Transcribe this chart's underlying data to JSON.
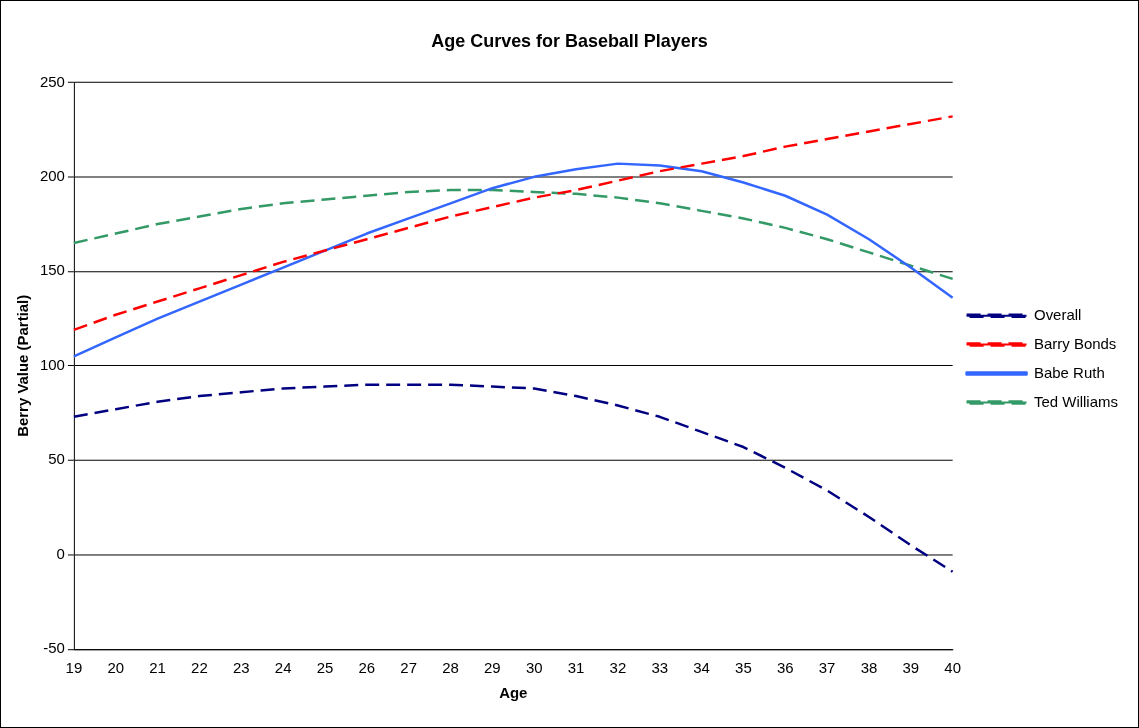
{
  "chart_data": {
    "type": "line",
    "title": "Age Curves for Baseball Players",
    "xlabel": "Age",
    "ylabel": "Berry Value (Partial)",
    "categories": [
      "19",
      "20",
      "21",
      "22",
      "23",
      "24",
      "25",
      "26",
      "27",
      "28",
      "29",
      "30",
      "31",
      "32",
      "33",
      "34",
      "35",
      "36",
      "37",
      "38",
      "39",
      "40"
    ],
    "series": [
      {
        "name": "Overall",
        "color": "#000080",
        "line_style": "dashed",
        "values": [
          73,
          77,
          81,
          84,
          86,
          88,
          89,
          90,
          90,
          90,
          89,
          88,
          84,
          79,
          73,
          65,
          57,
          46,
          34,
          20,
          5,
          -9
        ]
      },
      {
        "name": "Barry Bonds",
        "color": "#ff0000",
        "line_style": "dashed",
        "values": [
          119,
          127,
          134,
          141,
          148,
          155,
          161,
          167,
          173,
          179,
          184,
          189,
          193,
          198,
          203,
          207,
          211,
          216,
          220,
          224,
          228,
          232
        ]
      },
      {
        "name": "Babe Ruth",
        "color": "#3366ff",
        "line_style": "solid",
        "values": [
          105,
          115,
          125,
          134,
          143,
          152,
          161,
          170,
          178,
          186,
          194,
          200,
          204,
          207,
          206,
          203,
          197,
          190,
          180,
          167,
          152,
          136
        ]
      },
      {
        "name": "Ted Williams",
        "color": "#339966",
        "line_style": "dashed",
        "values": [
          165,
          170,
          175,
          179,
          183,
          186,
          188,
          190,
          192,
          193,
          193,
          192,
          191,
          189,
          186,
          182,
          178,
          173,
          167,
          160,
          153,
          146
        ]
      }
    ],
    "ylim": [
      -50,
      250
    ],
    "yticks": [
      -50,
      0,
      50,
      100,
      150,
      200,
      250
    ],
    "grid": "y",
    "legend": "right",
    "marker": "none"
  }
}
